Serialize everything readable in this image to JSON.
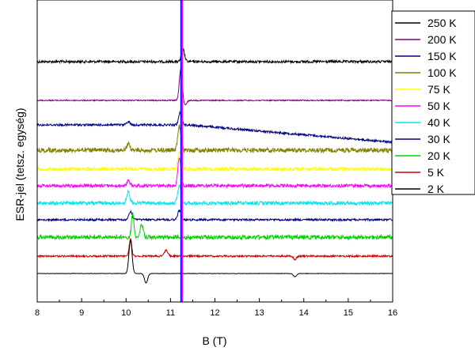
{
  "chart_data": {
    "type": "line",
    "xlabel": "B (T)",
    "ylabel": "ESR-jel (tetsz. egység)",
    "xlim": [
      8,
      16
    ],
    "x_ticks": [
      "8",
      "9",
      "10",
      "11",
      "12",
      "13",
      "14",
      "15",
      "16"
    ],
    "grid": false,
    "legend_position": "top-right",
    "marker_line": {
      "x": 11.25,
      "colors": [
        "#0000ff",
        "#ff00ff"
      ]
    },
    "series": [
      {
        "name": "250 K",
        "color": "#000000",
        "offset": 78,
        "noise": 1.6,
        "drift": 0,
        "features": [
          {
            "x": 11.28,
            "amp": -16,
            "w": 0.05
          }
        ]
      },
      {
        "name": "200 K",
        "color": "#800080",
        "offset": 127,
        "noise": 0.7,
        "drift": 0,
        "features": [
          {
            "x": 11.23,
            "amp": -40,
            "w": 0.045
          },
          {
            "x": 11.33,
            "amp": 6,
            "w": 0.05
          }
        ]
      },
      {
        "name": "150 K",
        "color": "#000080",
        "offset": 158,
        "noise": 1.4,
        "drift": 22,
        "features": [
          {
            "x": 10.05,
            "amp": -4,
            "w": 0.06
          },
          {
            "x": 11.22,
            "amp": -16,
            "w": 0.05
          }
        ]
      },
      {
        "name": "100 K",
        "color": "#808000",
        "offset": 190,
        "noise": 2.8,
        "drift": 0,
        "features": [
          {
            "x": 10.05,
            "amp": -8,
            "w": 0.05
          },
          {
            "x": 11.2,
            "amp": -30,
            "w": 0.05
          }
        ]
      },
      {
        "name": "75 K",
        "color": "#ffff00",
        "offset": 214,
        "noise": 2.2,
        "drift": 0,
        "features": [
          {
            "x": 11.2,
            "amp": -22,
            "w": 0.05
          }
        ]
      },
      {
        "name": "50 K",
        "color": "#ff00ff",
        "offset": 235,
        "noise": 2.0,
        "drift": 0,
        "features": [
          {
            "x": 10.05,
            "amp": -6,
            "w": 0.05
          },
          {
            "x": 11.2,
            "amp": -36,
            "w": 0.05
          }
        ]
      },
      {
        "name": "40 K",
        "color": "#00e5ee",
        "offset": 257,
        "noise": 2.2,
        "drift": 0,
        "features": [
          {
            "x": 10.05,
            "amp": -14,
            "w": 0.05
          },
          {
            "x": 11.2,
            "amp": -24,
            "w": 0.05
          }
        ]
      },
      {
        "name": "30 K",
        "color": "#000080",
        "offset": 278,
        "noise": 1.3,
        "drift": 0,
        "features": [
          {
            "x": 10.1,
            "amp": -10,
            "w": 0.05
          },
          {
            "x": 11.2,
            "amp": -12,
            "w": 0.05
          }
        ]
      },
      {
        "name": "20 K",
        "color": "#00d000",
        "offset": 300,
        "noise": 2.6,
        "drift": 0,
        "features": [
          {
            "x": 10.15,
            "amp": -30,
            "w": 0.04
          },
          {
            "x": 10.35,
            "amp": -16,
            "w": 0.05
          }
        ]
      },
      {
        "name": "5 K",
        "color": "#cc0000",
        "offset": 324,
        "noise": 1.1,
        "drift": 0,
        "features": [
          {
            "x": 10.1,
            "amp": -22,
            "w": 0.04
          },
          {
            "x": 10.9,
            "amp": -8,
            "w": 0.05
          },
          {
            "x": 13.8,
            "amp": 4,
            "w": 0.05
          }
        ]
      },
      {
        "name": "2 K",
        "color": "#000000",
        "offset": 346,
        "noise": 0.25,
        "drift": 0,
        "features": [
          {
            "x": 10.1,
            "amp": -42,
            "w": 0.05
          },
          {
            "x": 10.45,
            "amp": 12,
            "w": 0.05
          },
          {
            "x": 13.8,
            "amp": 4,
            "w": 0.05
          }
        ]
      }
    ]
  }
}
